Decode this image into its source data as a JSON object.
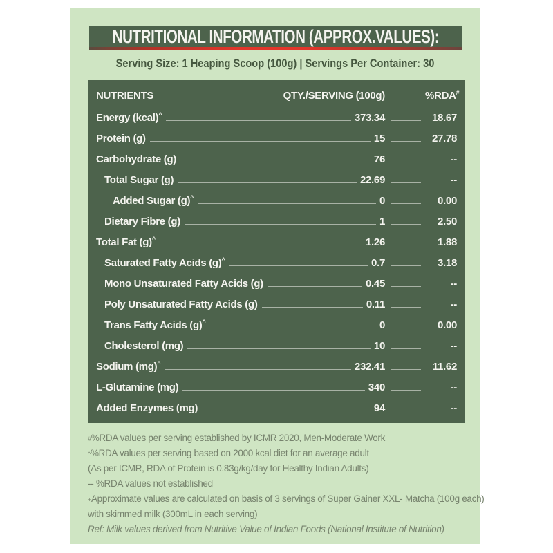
{
  "label": {
    "title": "NUTRITIONAL INFORMATION (APPROX.VALUES):",
    "serving_line": "Serving Size: 1 Heaping Scoop (100g) | Servings Per Container: 30",
    "table": {
      "headers": {
        "nutrients": "NUTRIENTS",
        "qty": "QTY./SERVING (100g)",
        "rda": "%RDA",
        "rda_sup": "#"
      },
      "rows": [
        {
          "label": "Energy (kcal)",
          "sup": "^",
          "indent": 0,
          "qty": "373.34",
          "rda": "18.67"
        },
        {
          "label": "Protein (g)",
          "sup": "",
          "indent": 0,
          "qty": "15",
          "rda": "27.78"
        },
        {
          "label": "Carbohydrate (g)",
          "sup": "",
          "indent": 0,
          "qty": "76",
          "rda": "--"
        },
        {
          "label": "Total Sugar (g)",
          "sup": "",
          "indent": 1,
          "qty": "22.69",
          "rda": "--"
        },
        {
          "label": "Added Sugar (g)",
          "sup": "^",
          "indent": 2,
          "qty": "0",
          "rda": "0.00"
        },
        {
          "label": "Dietary Fibre (g)",
          "sup": "",
          "indent": 1,
          "qty": "1",
          "rda": "2.50"
        },
        {
          "label": "Total Fat (g)",
          "sup": "^",
          "indent": 0,
          "qty": "1.26",
          "rda": "1.88"
        },
        {
          "label": "Saturated Fatty Acids (g)",
          "sup": "^",
          "indent": 1,
          "qty": "0.7",
          "rda": "3.18"
        },
        {
          "label": "Mono Unsaturated Fatty Acids (g)",
          "sup": "",
          "indent": 1,
          "qty": "0.45",
          "rda": "--"
        },
        {
          "label": "Poly Unsaturated Fatty Acids (g)",
          "sup": "",
          "indent": 1,
          "qty": "0.11",
          "rda": "--"
        },
        {
          "label": "Trans Fatty Acids (g)",
          "sup": "^",
          "indent": 1,
          "qty": "0",
          "rda": "0.00"
        },
        {
          "label": "Cholesterol (mg)",
          "sup": "",
          "indent": 1,
          "qty": "10",
          "rda": "--"
        },
        {
          "label": "Sodium (mg)",
          "sup": "^",
          "indent": 0,
          "qty": "232.41",
          "rda": "11.62"
        },
        {
          "label": "L-Glutamine (mg)",
          "sup": "",
          "indent": 0,
          "qty": "340",
          "rda": "--"
        },
        {
          "label": "Added Enzymes (mg)",
          "sup": "",
          "indent": 0,
          "qty": "94",
          "rda": "--"
        }
      ]
    },
    "notes": [
      {
        "sup": "#",
        "text": "%RDA values per serving established by ICMR 2020, Men-Moderate Work",
        "italic": false
      },
      {
        "sup": "^",
        "text": "%RDA values per serving based on 2000 kcal diet for an average adult",
        "italic": false
      },
      {
        "sup": "",
        "text": "(As per ICMR, RDA of Protein is 0.83g/kg/day for Healthy Indian Adults)",
        "italic": false
      },
      {
        "sup": "",
        "text": "-- %RDA values not established",
        "italic": false
      },
      {
        "sup": "+",
        "text": "Approximate values are calculated on basis of 3 servings of Super Gainer XXL- Matcha (100g each)",
        "italic": false
      },
      {
        "sup": "",
        "text": "with skimmed milk (300mL in each serving)",
        "italic": false
      },
      {
        "sup": "",
        "text": "Ref: Milk values derived from Nutritive Value of Indian Foods (National Institute of Nutrition)",
        "italic": true
      }
    ],
    "colors": {
      "dark_green": "#4d634c",
      "light_green": "#cfe5c3",
      "off_white": "#f4f4ef",
      "note_text": "#77836e",
      "serving_text": "#45573f",
      "accent_red": "#e2362b"
    }
  }
}
